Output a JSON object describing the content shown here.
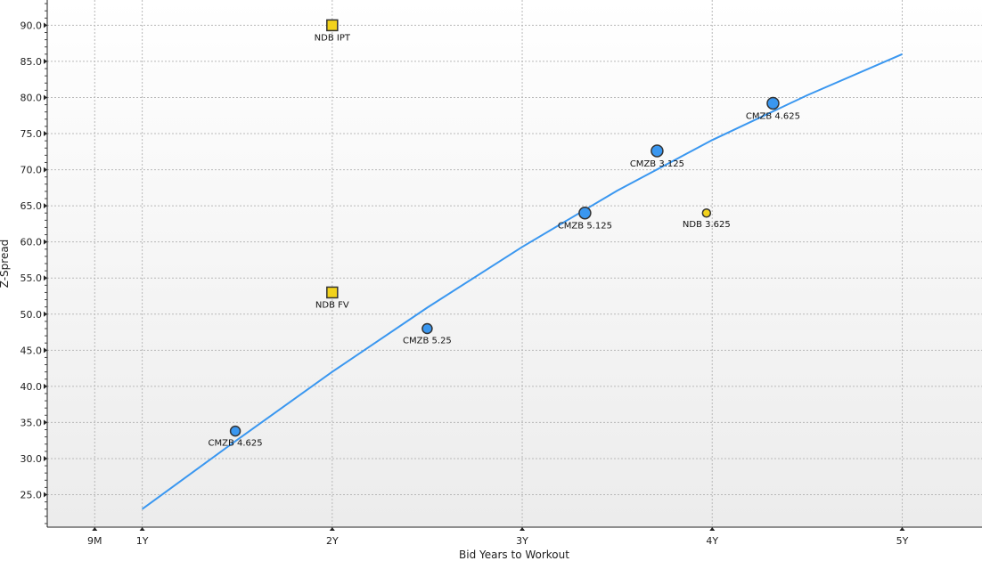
{
  "chart_data": {
    "type": "scatter",
    "title": "",
    "xlabel": "Bid Years to Workout",
    "ylabel": "Z-Spread",
    "xlim": [
      0.5,
      5.42
    ],
    "ylim": [
      20.5,
      93.5
    ],
    "y_ticks": [
      25,
      30,
      35,
      40,
      45,
      50,
      55,
      60,
      65,
      70,
      75,
      80,
      85,
      90
    ],
    "y_tick_labels": [
      "25.0",
      "30.0",
      "35.0",
      "40.0",
      "45.0",
      "50.0",
      "55.0",
      "60.0",
      "65.0",
      "70.0",
      "75.0",
      "80.0",
      "85.0",
      "90.0"
    ],
    "x_ticks": [
      0.75,
      1,
      2,
      3,
      4,
      5
    ],
    "x_tick_labels": [
      "9M",
      "1Y",
      "2Y",
      "3Y",
      "4Y",
      "5Y"
    ],
    "grid": true,
    "colors": {
      "curve": "#3a97f0",
      "cmzb_fill": "#3a97f0",
      "ndb_fill": "#f2d21c",
      "marker_stroke": "#333333",
      "grid": "#b9b9b9",
      "bg_top": "#ffffff",
      "bg_bottom": "#ececec"
    },
    "curve": {
      "name": "",
      "x": [
        1,
        1.5,
        2,
        2.5,
        3,
        3.5,
        4,
        4.5,
        5
      ],
      "y": [
        23,
        32.6,
        42,
        50.9,
        59.3,
        67.1,
        74.1,
        80.3,
        86
      ]
    },
    "series": [
      {
        "name": "",
        "marker": "circle",
        "points": [
          {
            "x": 1.49,
            "y": 33.8,
            "label": "CMZB 4.625"
          },
          {
            "x": 2.5,
            "y": 48.0,
            "label": "CMZB 5.25"
          },
          {
            "x": 3.33,
            "y": 64.0,
            "label": "CMZB 5.125"
          },
          {
            "x": 3.71,
            "y": 72.6,
            "label": "CMZB 3.125"
          },
          {
            "x": 4.32,
            "y": 79.2,
            "label": "CMZB 4.625"
          }
        ]
      },
      {
        "name": "",
        "marker": "mixed",
        "points": [
          {
            "x": 2.0,
            "y": 90.0,
            "label": "NDB IPT",
            "shape": "square"
          },
          {
            "x": 2.0,
            "y": 53.0,
            "label": "NDB FV",
            "shape": "square"
          },
          {
            "x": 3.97,
            "y": 64.0,
            "label": "NDB 3.625",
            "shape": "circle"
          }
        ]
      }
    ]
  }
}
